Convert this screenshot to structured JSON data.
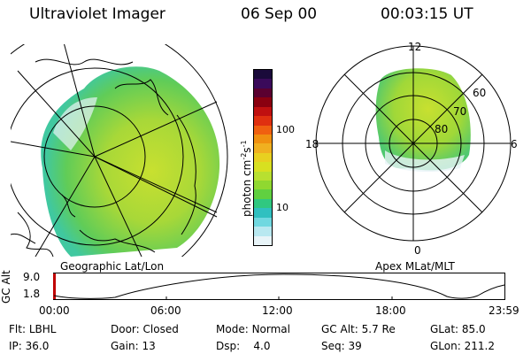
{
  "header": {
    "instrument": "Ultraviolet Imager",
    "date": "06 Sep 00",
    "time": "00:03:15 UT"
  },
  "colorbar": {
    "unit_text": "photon cm",
    "unit_sup1": "-2",
    "unit_mid": "s",
    "unit_sup2": "-1",
    "ticks": [
      "100",
      "10"
    ],
    "colors": [
      "#1a0a3a",
      "#3a0a5a",
      "#5a0030",
      "#8a0010",
      "#c01010",
      "#e03010",
      "#f06010",
      "#f09010",
      "#f0b020",
      "#e8d020",
      "#d8e020",
      "#b8e030",
      "#90d830",
      "#60d040",
      "#30c880",
      "#30c0c0",
      "#70d8e0",
      "#b8e8f0",
      "#e8f4f8"
    ]
  },
  "left_panel": {
    "label": "Geographic Lat/Lon"
  },
  "right_panel": {
    "label": "Apex MLat/MLT",
    "mlt_labels": {
      "top": "12",
      "left": "18",
      "right": "6",
      "bottom": "0"
    },
    "lat_labels": [
      "60",
      "70",
      "80"
    ]
  },
  "altitude_plot": {
    "axis_title": "GC Alt",
    "y_ticks": [
      "9.0",
      "1.8"
    ],
    "x_ticks": [
      "00:00",
      "06:00",
      "12:00",
      "18:00",
      "23:59"
    ]
  },
  "info": {
    "row1": [
      {
        "key": "Flt:",
        "value": "LBHL"
      },
      {
        "key": "Door:",
        "value": "Closed"
      },
      {
        "key": "Mode:",
        "value": "Normal"
      },
      {
        "key": "GC Alt:",
        "value": "5.7 Re"
      },
      {
        "key": "GLat:",
        "value": "85.0"
      }
    ],
    "row2": [
      {
        "key": "IP:",
        "value": "36.0"
      },
      {
        "key": "Gain:",
        "value": "13"
      },
      {
        "key": "Dsp:",
        "value": "4.0"
      },
      {
        "key": "Seq:",
        "value": "39"
      },
      {
        "key": "GLon:",
        "value": "211.2"
      }
    ]
  }
}
